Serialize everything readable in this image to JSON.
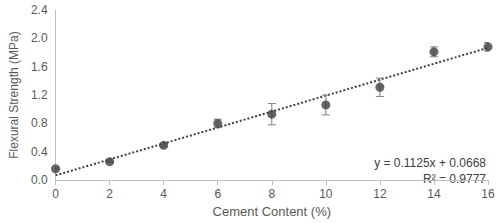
{
  "chart_data": {
    "type": "scatter",
    "x_label": "Cement Content (%)",
    "y_label": "Flexural Strength (MPa)",
    "x": [
      0,
      2,
      4,
      6,
      8,
      10,
      12,
      14,
      16
    ],
    "values": [
      0.16,
      0.26,
      0.49,
      0.8,
      0.93,
      1.06,
      1.31,
      1.81,
      1.88
    ],
    "errors": [
      0.01,
      0.01,
      0.02,
      0.06,
      0.15,
      0.14,
      0.13,
      0.07,
      0.06
    ],
    "color": "#404040",
    "marker": "circle",
    "trendline": {
      "x": [
        0,
        16
      ],
      "values": [
        0.0668,
        1.8668
      ],
      "line_style": "dotted",
      "color": "#404040"
    },
    "annotations": [
      "y = 0.1125x + 0.0668",
      "R² = 0.9777"
    ],
    "xlim": [
      0,
      16
    ],
    "xticks": [
      0,
      2,
      4,
      6,
      8,
      10,
      12,
      14,
      16
    ],
    "ylim": [
      0,
      2.4
    ],
    "yticks": [
      {
        "value": 0,
        "label": "0.0"
      },
      0.4,
      0.8,
      1.2,
      1.6,
      {
        "value": 2.0,
        "label": "2.0"
      },
      2.4
    ],
    "grid": false
  }
}
